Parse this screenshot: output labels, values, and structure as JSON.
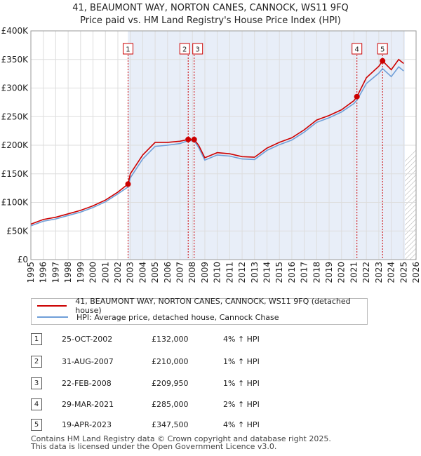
{
  "title_line1": "41, BEAUMONT WAY, NORTON CANES, CANNOCK, WS11 9FQ",
  "title_line2": "Price paid vs. HM Land Registry's House Price Index (HPI)",
  "colors": {
    "property": "#cc0000",
    "hpi": "#6f9fd8",
    "band": "#e8eef8",
    "vline": "#cc0000",
    "grid": "#dddddd"
  },
  "chart_data": {
    "type": "line",
    "x_ticks": [
      1995,
      1996,
      1997,
      1998,
      1999,
      2000,
      2001,
      2002,
      2003,
      2004,
      2005,
      2006,
      2007,
      2008,
      2009,
      2010,
      2011,
      2012,
      2013,
      2014,
      2015,
      2016,
      2017,
      2018,
      2019,
      2020,
      2021,
      2022,
      2023,
      2024,
      2025,
      2026
    ],
    "x_tick_labels": [
      "1995",
      "1996",
      "1997",
      "1998",
      "1999",
      "2000",
      "2001",
      "2002",
      "2003",
      "2004",
      "2005",
      "2006",
      "2007",
      "2008",
      "2009",
      "2010",
      "2011",
      "2012",
      "2013",
      "2014",
      "2015",
      "2016",
      "2017",
      "2018",
      "2019",
      "2020",
      "2021",
      "2022",
      "2023",
      "2024",
      "2025",
      "2026"
    ],
    "y_ticks": [
      0,
      50000,
      100000,
      150000,
      200000,
      250000,
      300000,
      350000,
      400000
    ],
    "y_tick_labels": [
      "£0",
      "£50K",
      "£100K",
      "£150K",
      "£200K",
      "£250K",
      "£300K",
      "£350K",
      "£400K"
    ],
    "xlim": [
      1995,
      2026
    ],
    "ylim": [
      0,
      400000
    ],
    "shaded_band": [
      2002.8,
      2025.1
    ],
    "series": [
      {
        "name": "41, BEAUMONT WAY, NORTON CANES, CANNOCK, WS11 9FQ (detached house)",
        "x": [
          1995,
          1996,
          1997,
          1998,
          1999,
          2000,
          2001,
          2002,
          2002.82,
          2003,
          2004,
          2005,
          2006,
          2007,
          2007.66,
          2008.14,
          2008.5,
          2009,
          2010,
          2011,
          2012,
          2013,
          2014,
          2015,
          2016,
          2017,
          2018,
          2019,
          2020,
          2021,
          2021.24,
          2022,
          2023,
          2023.3,
          2024,
          2024.6,
          2025
        ],
        "y": [
          62000,
          70000,
          74000,
          80000,
          86000,
          94000,
          104000,
          118000,
          132000,
          150000,
          183000,
          205000,
          205000,
          207000,
          210000,
          209950,
          200000,
          178000,
          187000,
          185000,
          180000,
          179000,
          195000,
          205000,
          213000,
          227000,
          244000,
          252000,
          262000,
          278000,
          285000,
          318000,
          338000,
          347500,
          332000,
          350000,
          343000
        ]
      },
      {
        "name": "HPI: Average price, detached house, Cannock Chase",
        "x": [
          1995,
          1996,
          1997,
          1998,
          1999,
          2000,
          2001,
          2002,
          2002.82,
          2003,
          2004,
          2005,
          2006,
          2007,
          2007.66,
          2008.14,
          2008.5,
          2009,
          2010,
          2011,
          2012,
          2013,
          2014,
          2015,
          2016,
          2017,
          2018,
          2019,
          2020,
          2021,
          2021.24,
          2022,
          2023,
          2023.3,
          2024,
          2024.6,
          2025
        ],
        "y": [
          59000,
          67000,
          71000,
          77000,
          83000,
          91000,
          101000,
          115000,
          127000,
          143000,
          176000,
          198000,
          200000,
          203000,
          208000,
          207900,
          196000,
          174000,
          183000,
          181000,
          176000,
          175000,
          191000,
          201000,
          209000,
          223000,
          240000,
          248000,
          258000,
          273000,
          279000,
          308000,
          326000,
          334000,
          320000,
          337000,
          330000
        ]
      }
    ],
    "sales": [
      {
        "num": "1",
        "x": 2002.82,
        "price": 132000
      },
      {
        "num": "2",
        "x": 2007.66,
        "price": 210000
      },
      {
        "num": "3",
        "x": 2008.14,
        "price": 209950
      },
      {
        "num": "4",
        "x": 2021.24,
        "price": 285000
      },
      {
        "num": "5",
        "x": 2023.3,
        "price": 347500
      }
    ]
  },
  "legend": {
    "property_label": "41, BEAUMONT WAY, NORTON CANES, CANNOCK, WS11 9FQ (detached house)",
    "hpi_label": "HPI: Average price, detached house, Cannock Chase"
  },
  "transactions": [
    {
      "num": "1",
      "date": "25-OCT-2002",
      "price": "£132,000",
      "hpi": "4% ↑ HPI"
    },
    {
      "num": "2",
      "date": "31-AUG-2007",
      "price": "£210,000",
      "hpi": "1% ↑ HPI"
    },
    {
      "num": "3",
      "date": "22-FEB-2008",
      "price": "£209,950",
      "hpi": "1% ↑ HPI"
    },
    {
      "num": "4",
      "date": "29-MAR-2021",
      "price": "£285,000",
      "hpi": "2% ↑ HPI"
    },
    {
      "num": "5",
      "date": "19-APR-2023",
      "price": "£347,500",
      "hpi": "4% ↑ HPI"
    }
  ],
  "footer": {
    "line1": "Contains HM Land Registry data © Crown copyright and database right 2025.",
    "line2": "This data is licensed under the Open Government Licence v3.0."
  }
}
